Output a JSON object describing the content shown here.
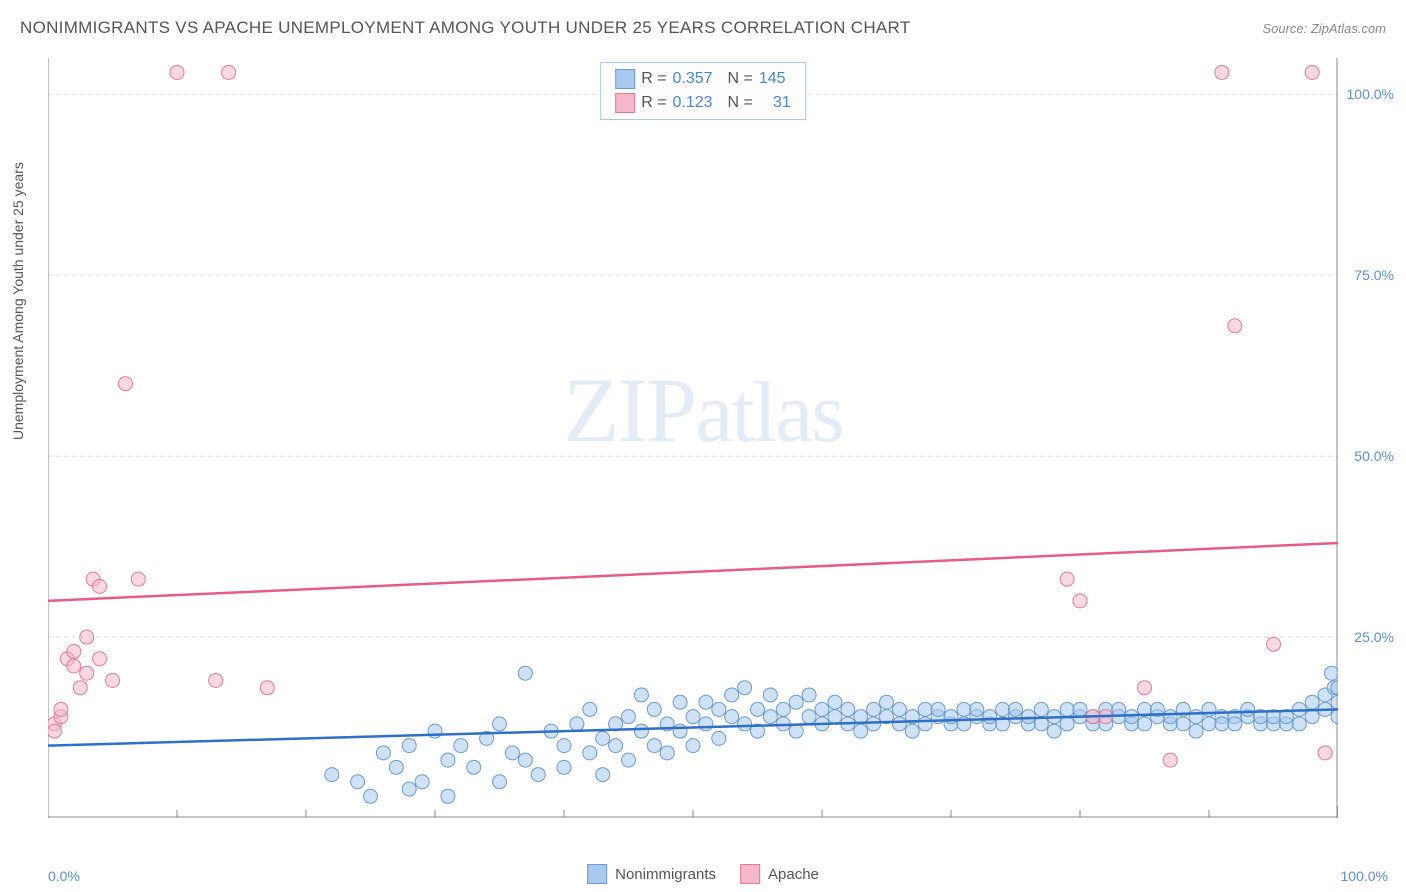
{
  "header": {
    "title": "NONIMMIGRANTS VS APACHE UNEMPLOYMENT AMONG YOUTH UNDER 25 YEARS CORRELATION CHART",
    "source_label": "Source: ZipAtlas.com"
  },
  "watermark": {
    "part1": "ZIP",
    "part2": "atlas"
  },
  "chart": {
    "type": "scatter",
    "y_axis_label": "Unemployment Among Youth under 25 years",
    "xlim": [
      0,
      100
    ],
    "ylim": [
      0,
      105
    ],
    "x_ticks": [
      {
        "v": 0,
        "label": "0.0%"
      },
      {
        "v": 100,
        "label": "100.0%"
      }
    ],
    "y_ticks": [
      {
        "v": 25,
        "label": "25.0%"
      },
      {
        "v": 50,
        "label": "50.0%"
      },
      {
        "v": 75,
        "label": "75.0%"
      },
      {
        "v": 100,
        "label": "100.0%"
      }
    ],
    "gridline_color": "#dcdcdc",
    "gridline_dash": "4,4",
    "axis_line_color": "#888888",
    "background_color": "#ffffff",
    "x_minor_ticks": [
      10,
      20,
      30,
      40,
      50,
      60,
      70,
      80,
      90
    ],
    "marker_radius": 7,
    "marker_stroke_width": 1,
    "trend_line_width": 2.5,
    "series": [
      {
        "name": "Nonimmigrants",
        "fill_color": "#a8c8ec",
        "stroke_color": "#6b9bd1",
        "fill_opacity": 0.55,
        "r_value": "0.357",
        "n_value": "145",
        "trend": {
          "x1": 0,
          "y1": 10.0,
          "x2": 100,
          "y2": 15.0,
          "color": "#2e6fc9"
        },
        "points": [
          [
            22,
            6
          ],
          [
            24,
            5
          ],
          [
            25,
            3
          ],
          [
            26,
            9
          ],
          [
            27,
            7
          ],
          [
            28,
            10
          ],
          [
            29,
            5
          ],
          [
            30,
            12
          ],
          [
            31,
            8
          ],
          [
            32,
            10
          ],
          [
            33,
            7
          ],
          [
            34,
            11
          ],
          [
            35,
            5
          ],
          [
            35,
            13
          ],
          [
            36,
            9
          ],
          [
            37,
            20
          ],
          [
            37,
            8
          ],
          [
            38,
            6
          ],
          [
            39,
            12
          ],
          [
            40,
            10
          ],
          [
            40,
            7
          ],
          [
            41,
            13
          ],
          [
            42,
            9
          ],
          [
            42,
            15
          ],
          [
            43,
            11
          ],
          [
            43,
            6
          ],
          [
            44,
            13
          ],
          [
            44,
            10
          ],
          [
            45,
            8
          ],
          [
            45,
            14
          ],
          [
            46,
            12
          ],
          [
            46,
            17
          ],
          [
            47,
            10
          ],
          [
            47,
            15
          ],
          [
            48,
            13
          ],
          [
            48,
            9
          ],
          [
            49,
            16
          ],
          [
            49,
            12
          ],
          [
            50,
            14
          ],
          [
            50,
            10
          ],
          [
            51,
            16
          ],
          [
            51,
            13
          ],
          [
            52,
            15
          ],
          [
            52,
            11
          ],
          [
            53,
            17
          ],
          [
            53,
            14
          ],
          [
            54,
            13
          ],
          [
            54,
            18
          ],
          [
            55,
            15
          ],
          [
            55,
            12
          ],
          [
            56,
            14
          ],
          [
            56,
            17
          ],
          [
            57,
            13
          ],
          [
            57,
            15
          ],
          [
            58,
            16
          ],
          [
            58,
            12
          ],
          [
            59,
            14
          ],
          [
            59,
            17
          ],
          [
            60,
            13
          ],
          [
            60,
            15
          ],
          [
            61,
            14
          ],
          [
            61,
            16
          ],
          [
            62,
            13
          ],
          [
            62,
            15
          ],
          [
            63,
            14
          ],
          [
            63,
            12
          ],
          [
            64,
            15
          ],
          [
            64,
            13
          ],
          [
            65,
            14
          ],
          [
            65,
            16
          ],
          [
            66,
            13
          ],
          [
            66,
            15
          ],
          [
            67,
            14
          ],
          [
            67,
            12
          ],
          [
            68,
            15
          ],
          [
            68,
            13
          ],
          [
            69,
            14
          ],
          [
            69,
            15
          ],
          [
            70,
            13
          ],
          [
            70,
            14
          ],
          [
            71,
            15
          ],
          [
            71,
            13
          ],
          [
            72,
            14
          ],
          [
            72,
            15
          ],
          [
            73,
            13
          ],
          [
            73,
            14
          ],
          [
            74,
            15
          ],
          [
            74,
            13
          ],
          [
            75,
            14
          ],
          [
            75,
            15
          ],
          [
            76,
            13
          ],
          [
            76,
            14
          ],
          [
            77,
            15
          ],
          [
            77,
            13
          ],
          [
            78,
            14
          ],
          [
            78,
            12
          ],
          [
            79,
            15
          ],
          [
            79,
            13
          ],
          [
            80,
            14
          ],
          [
            80,
            15
          ],
          [
            81,
            13
          ],
          [
            81,
            14
          ],
          [
            82,
            15
          ],
          [
            82,
            13
          ],
          [
            83,
            14
          ],
          [
            83,
            15
          ],
          [
            84,
            13
          ],
          [
            84,
            14
          ],
          [
            85,
            15
          ],
          [
            85,
            13
          ],
          [
            86,
            14
          ],
          [
            86,
            15
          ],
          [
            87,
            13
          ],
          [
            87,
            14
          ],
          [
            88,
            15
          ],
          [
            88,
            13
          ],
          [
            89,
            14
          ],
          [
            89,
            12
          ],
          [
            90,
            15
          ],
          [
            90,
            13
          ],
          [
            91,
            14
          ],
          [
            91,
            13
          ],
          [
            92,
            14
          ],
          [
            92,
            13
          ],
          [
            93,
            14
          ],
          [
            93,
            15
          ],
          [
            94,
            13
          ],
          [
            94,
            14
          ],
          [
            95,
            13
          ],
          [
            95,
            14
          ],
          [
            96,
            13
          ],
          [
            96,
            14
          ],
          [
            97,
            13
          ],
          [
            97,
            15
          ],
          [
            98,
            14
          ],
          [
            98,
            16
          ],
          [
            99,
            15
          ],
          [
            99,
            17
          ],
          [
            99.5,
            20
          ],
          [
            99.7,
            18
          ],
          [
            100,
            16
          ],
          [
            100,
            18
          ],
          [
            100,
            14
          ],
          [
            28,
            4
          ],
          [
            31,
            3
          ]
        ]
      },
      {
        "name": "Apache",
        "fill_color": "#f5b8c8",
        "stroke_color": "#e07a9a",
        "fill_opacity": 0.55,
        "r_value": "0.123",
        "n_value": "31",
        "trend": {
          "x1": 0,
          "y1": 30.0,
          "x2": 100,
          "y2": 38.0,
          "color": "#e85a8a"
        },
        "points": [
          [
            0.5,
            13
          ],
          [
            0.5,
            12
          ],
          [
            1,
            14
          ],
          [
            1,
            15
          ],
          [
            1.5,
            22
          ],
          [
            2,
            21
          ],
          [
            2,
            23
          ],
          [
            2.5,
            18
          ],
          [
            3,
            20
          ],
          [
            3,
            25
          ],
          [
            3.5,
            33
          ],
          [
            4,
            32
          ],
          [
            4,
            22
          ],
          [
            5,
            19
          ],
          [
            6,
            60
          ],
          [
            7,
            33
          ],
          [
            10,
            103
          ],
          [
            13,
            19
          ],
          [
            14,
            103
          ],
          [
            17,
            18
          ],
          [
            79,
            33
          ],
          [
            80,
            30
          ],
          [
            81,
            14
          ],
          [
            82,
            14
          ],
          [
            85,
            18
          ],
          [
            87,
            8
          ],
          [
            91,
            103
          ],
          [
            92,
            68
          ],
          [
            95,
            24
          ],
          [
            98,
            103
          ],
          [
            99,
            9
          ]
        ]
      }
    ],
    "legend_bottom": [
      {
        "label": "Nonimmigrants",
        "fill": "#a8c8ec",
        "stroke": "#6b9bd1"
      },
      {
        "label": "Apache",
        "fill": "#f5b8c8",
        "stroke": "#e07a9a"
      }
    ]
  }
}
